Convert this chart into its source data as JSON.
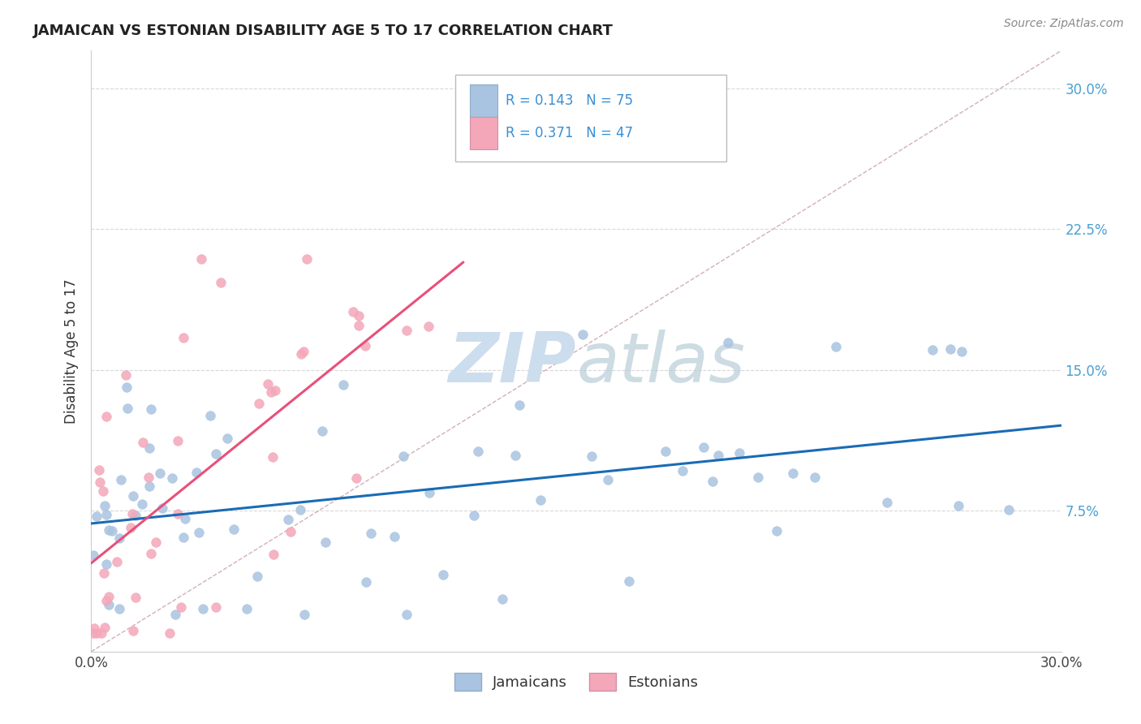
{
  "title": "JAMAICAN VS ESTONIAN DISABILITY AGE 5 TO 17 CORRELATION CHART",
  "source_text": "Source: ZipAtlas.com",
  "ylabel": "Disability Age 5 to 17",
  "xmin": 0.0,
  "xmax": 0.3,
  "ymin": 0.0,
  "ymax": 0.32,
  "legend_label1": "Jamaicans",
  "legend_label2": "Estonians",
  "R1": 0.143,
  "N1": 75,
  "R2": 0.371,
  "N2": 47,
  "color_jamaican": "#a8c4e0",
  "color_estonian": "#f4a7b9",
  "line_color_jamaican": "#1a6bb5",
  "line_color_estonian": "#e8507a",
  "watermark_color": "#ccdded",
  "grid_color": "#d8d8d8"
}
